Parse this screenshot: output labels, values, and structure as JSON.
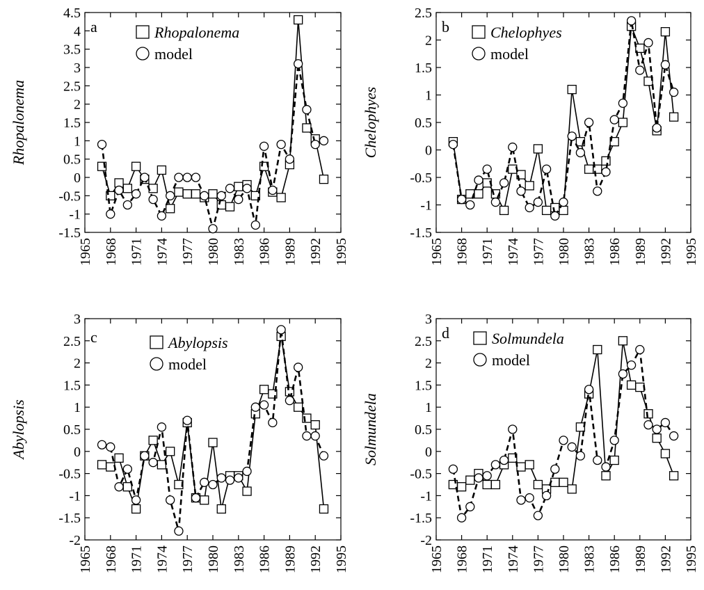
{
  "chart_data": [
    {
      "type": "line",
      "panel_label": "a",
      "ylabel": "Rhopalonema",
      "x": [
        1967,
        1968,
        1969,
        1970,
        1971,
        1972,
        1973,
        1974,
        1975,
        1976,
        1977,
        1978,
        1979,
        1980,
        1981,
        1982,
        1983,
        1984,
        1985,
        1986,
        1987,
        1988,
        1989,
        1990,
        1991,
        1992,
        1993
      ],
      "series": [
        {
          "name": "Rhopalonema",
          "marker": "square",
          "line": "solid",
          "values": [
            0.3,
            -0.5,
            -0.15,
            -0.3,
            0.3,
            -0.05,
            -0.3,
            0.2,
            -0.85,
            -0.4,
            -0.45,
            -0.45,
            -0.55,
            -0.45,
            -0.75,
            -0.8,
            -0.25,
            -0.2,
            -0.5,
            0.3,
            -0.4,
            -0.55,
            0.35,
            4.3,
            1.35,
            1.05,
            -0.05
          ]
        },
        {
          "name": "model",
          "marker": "circle",
          "line": "dashed",
          "values": [
            0.9,
            -1.0,
            -0.35,
            -0.75,
            -0.45,
            0.0,
            -0.6,
            -1.05,
            -0.5,
            0.0,
            0.0,
            0.0,
            -0.5,
            -1.4,
            -0.5,
            -0.3,
            -0.6,
            -0.3,
            -1.3,
            0.85,
            -0.35,
            0.9,
            0.5,
            3.1,
            1.85,
            0.9,
            1.0
          ]
        }
      ],
      "xticks": [
        "1965",
        "1968",
        "1971",
        "1974",
        "1977",
        "1980",
        "1983",
        "1986",
        "1989",
        "1992",
        "1995"
      ],
      "yticks": [
        "-1.5",
        "-1",
        "-0.5",
        "0",
        "0.5",
        "1",
        "1.5",
        "2",
        "2.5",
        "3",
        "3.5",
        "4",
        "4.5"
      ],
      "xlim": [
        1965,
        1995
      ],
      "ylim": [
        -1.5,
        4.5
      ],
      "legend_position": "top-left"
    },
    {
      "type": "line",
      "panel_label": "b",
      "ylabel": "Chelophyes",
      "x": [
        1967,
        1968,
        1969,
        1970,
        1971,
        1972,
        1973,
        1974,
        1975,
        1976,
        1977,
        1978,
        1979,
        1980,
        1981,
        1982,
        1983,
        1984,
        1985,
        1986,
        1987,
        1988,
        1989,
        1990,
        1991,
        1992,
        1993
      ],
      "series": [
        {
          "name": "Chelophyes",
          "marker": "square",
          "line": "solid",
          "values": [
            0.15,
            -0.9,
            -0.8,
            -0.8,
            -0.6,
            -0.8,
            -1.1,
            -0.35,
            -0.45,
            -0.65,
            0.02,
            -1.1,
            -1.05,
            -1.1,
            1.1,
            0.15,
            -0.35,
            -0.35,
            -0.2,
            0.15,
            0.5,
            2.25,
            1.85,
            1.25,
            0.35,
            2.15,
            0.6
          ]
        },
        {
          "name": "model",
          "marker": "circle",
          "line": "dashed",
          "values": [
            0.1,
            -0.9,
            -1.0,
            -0.55,
            -0.35,
            -0.95,
            -0.6,
            0.05,
            -0.75,
            -1.05,
            -0.95,
            -0.35,
            -1.2,
            -0.95,
            0.25,
            -0.05,
            0.5,
            -0.75,
            -0.4,
            0.55,
            0.85,
            2.35,
            1.45,
            1.95,
            0.4,
            1.55,
            1.05
          ]
        }
      ],
      "xticks": [
        "1965",
        "1968",
        "1971",
        "1974",
        "1977",
        "1980",
        "1983",
        "1986",
        "1989",
        "1992",
        "1995"
      ],
      "yticks": [
        "-1.5",
        "-1",
        "-0.5",
        "0",
        "0.5",
        "1",
        "1.5",
        "2",
        "2.5"
      ],
      "xlim": [
        1965,
        1995
      ],
      "ylim": [
        -1.5,
        2.5
      ],
      "legend_position": "top-left"
    },
    {
      "type": "line",
      "panel_label": "c",
      "ylabel": "Abylopsis",
      "x": [
        1967,
        1968,
        1969,
        1970,
        1971,
        1972,
        1973,
        1974,
        1975,
        1976,
        1977,
        1978,
        1979,
        1980,
        1981,
        1982,
        1983,
        1984,
        1985,
        1986,
        1987,
        1988,
        1989,
        1990,
        1991,
        1992,
        1993
      ],
      "series": [
        {
          "name": "Abylopsis",
          "marker": "square",
          "line": "solid",
          "values": [
            -0.3,
            -0.35,
            -0.15,
            -0.8,
            -1.3,
            -0.1,
            0.25,
            -0.3,
            0.0,
            -0.75,
            0.65,
            -1.05,
            -1.1,
            0.2,
            -1.3,
            -0.55,
            -0.55,
            -0.9,
            0.85,
            1.4,
            1.3,
            2.6,
            1.35,
            1.0,
            0.75,
            0.6,
            -1.3
          ]
        },
        {
          "name": "model",
          "marker": "circle",
          "line": "dashed",
          "values": [
            0.15,
            0.1,
            -0.8,
            -0.4,
            -1.1,
            -0.1,
            -0.25,
            0.55,
            -1.1,
            -1.8,
            0.7,
            -1.05,
            -0.7,
            -0.75,
            -0.6,
            -0.65,
            -0.6,
            -0.45,
            1.0,
            1.05,
            0.65,
            2.75,
            1.15,
            1.9,
            0.35,
            0.35,
            -0.1
          ]
        }
      ],
      "xticks": [
        "1965",
        "1968",
        "1971",
        "1974",
        "1977",
        "1980",
        "1983",
        "1986",
        "1989",
        "1992",
        "1995"
      ],
      "yticks": [
        "-2",
        "-1.5",
        "-1",
        "-0.5",
        "0",
        "0.5",
        "1",
        "1.5",
        "2",
        "2.5",
        "3"
      ],
      "xlim": [
        1965,
        1995
      ],
      "ylim": [
        -2,
        3
      ],
      "legend_position": "top-left"
    },
    {
      "type": "line",
      "panel_label": "d",
      "ylabel": "Solmundela",
      "x": [
        1967,
        1968,
        1969,
        1970,
        1971,
        1972,
        1973,
        1974,
        1975,
        1976,
        1977,
        1978,
        1979,
        1980,
        1981,
        1982,
        1983,
        1984,
        1985,
        1986,
        1987,
        1988,
        1989,
        1990,
        1991,
        1992,
        1993
      ],
      "series": [
        {
          "name": "Solmundela",
          "marker": "square",
          "line": "solid",
          "values": [
            -0.75,
            -0.8,
            -0.65,
            -0.5,
            -0.75,
            -0.75,
            -0.3,
            -0.15,
            -0.35,
            -0.3,
            -0.75,
            -0.85,
            -0.7,
            -0.7,
            -0.85,
            0.55,
            1.3,
            2.3,
            -0.55,
            -0.2,
            2.5,
            1.5,
            1.45,
            0.85,
            0.3,
            -0.05,
            -0.55
          ]
        },
        {
          "name": "model",
          "marker": "circle",
          "line": "dashed",
          "values": [
            -0.4,
            -1.5,
            -1.25,
            -0.6,
            -0.55,
            -0.3,
            -0.2,
            0.5,
            -1.1,
            -1.05,
            -1.45,
            -1.0,
            -0.4,
            0.25,
            0.1,
            -0.1,
            1.4,
            -0.2,
            -0.35,
            0.25,
            1.75,
            1.95,
            2.3,
            0.6,
            0.5,
            0.65,
            0.35
          ]
        }
      ],
      "xticks": [
        "1965",
        "1968",
        "1971",
        "1974",
        "1977",
        "1980",
        "1983",
        "1986",
        "1989",
        "1992",
        "1995"
      ],
      "yticks": [
        "-2",
        "-1.5",
        "-1",
        "-0.5",
        "0",
        "0.5",
        "1",
        "1.5",
        "2",
        "2.5",
        "3"
      ],
      "xlim": [
        1965,
        1995
      ],
      "ylim": [
        -2,
        3
      ],
      "legend_position": "top-left"
    }
  ]
}
